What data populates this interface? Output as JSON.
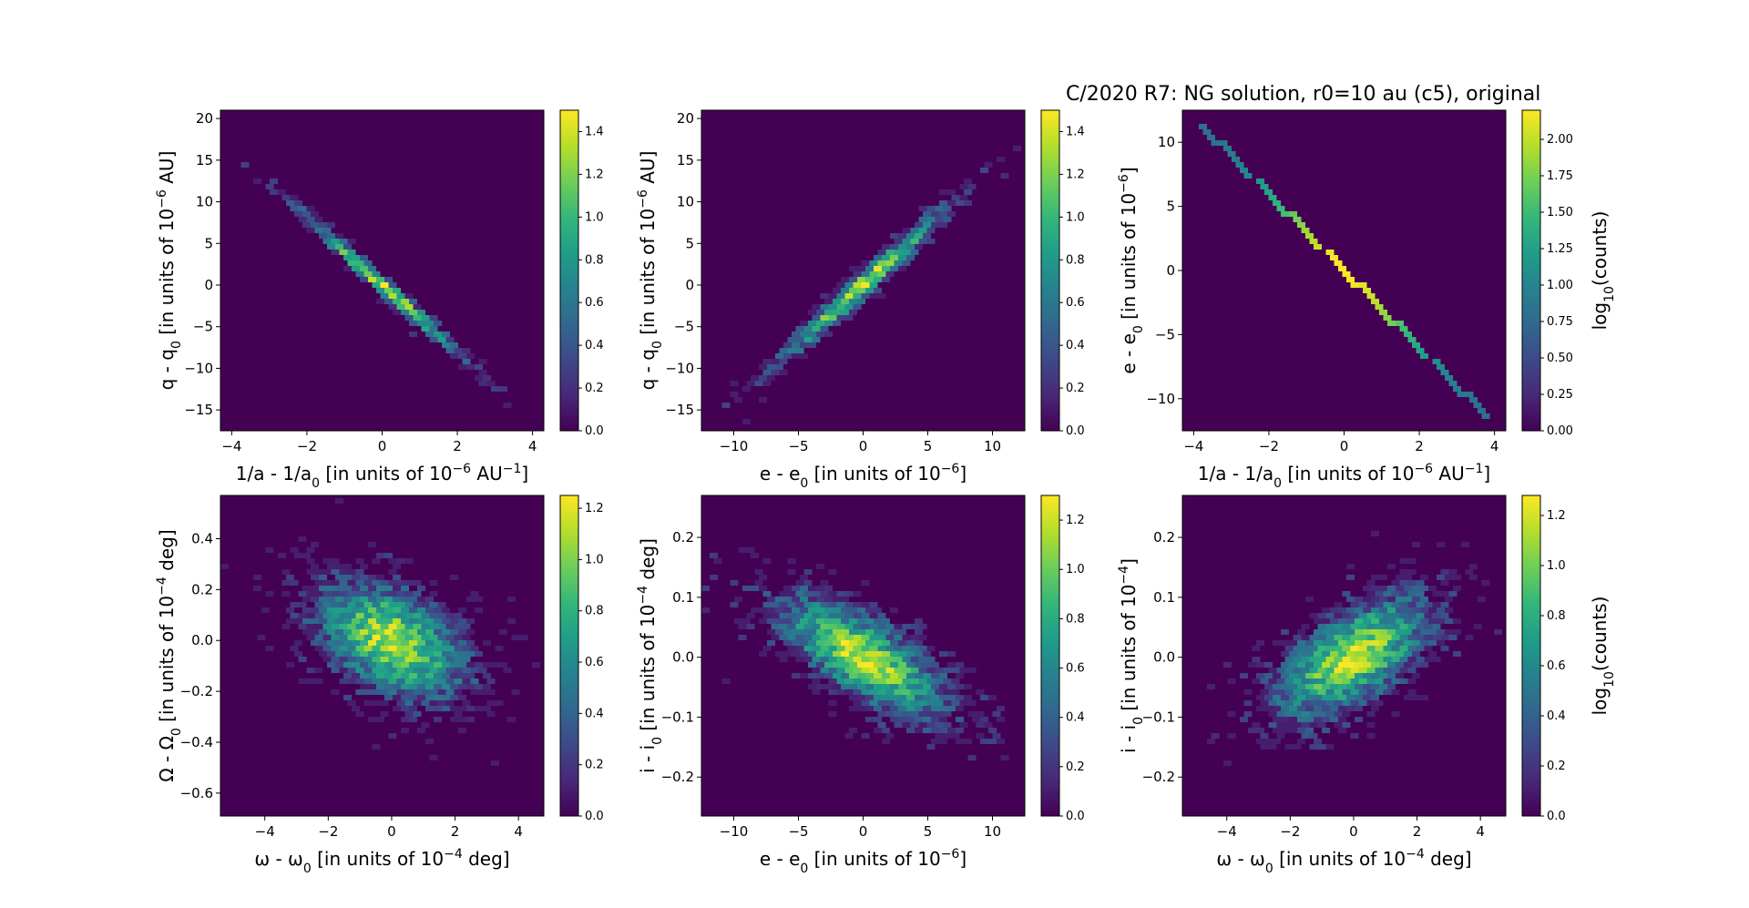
{
  "figure": {
    "title": "C/2020 R7: NG solution, r0=10 au (c5), original"
  },
  "colormap": {
    "name": "viridis",
    "stops": [
      "#440154",
      "#482878",
      "#3e4989",
      "#31688e",
      "#26828e",
      "#1f9e89",
      "#35b779",
      "#6ece58",
      "#b5de2b",
      "#fde725"
    ]
  },
  "chart_data": [
    {
      "type": "heatmap",
      "panel": "top-left",
      "x_label": {
        "main": "1/a - 1/a",
        "sub": "0",
        "mid": " [in units of 10",
        "sup": "−6",
        "post": " AU",
        "sup2": "−1",
        "end": "]"
      },
      "y_label": {
        "main": "q - q",
        "sub": "0",
        "mid": " [in units of 10",
        "sup": "−6",
        "post": " AU]"
      },
      "xlim": [
        -4.3,
        4.3
      ],
      "ylim": [
        -17.5,
        21
      ],
      "xticks": [
        "−4",
        "−2",
        "0",
        "2",
        "4"
      ],
      "xtick_values": [
        -4,
        -2,
        0,
        2,
        4
      ],
      "yticks": [
        "−15",
        "−10",
        "−5",
        "0",
        "5",
        "10",
        "15",
        "20"
      ],
      "ytick_values": [
        -15,
        -10,
        -5,
        0,
        5,
        10,
        15,
        20
      ],
      "slope": -4.0,
      "sx": 1.4,
      "sperp": 0.75,
      "scatter": "ellipse",
      "colorbar": {
        "range": [
          0,
          1.5
        ],
        "ticks": [
          "0.0",
          "0.2",
          "0.4",
          "0.6",
          "0.8",
          "1.0",
          "1.2",
          "1.4"
        ],
        "tick_values": [
          0,
          0.2,
          0.4,
          0.6,
          0.8,
          1.0,
          1.2,
          1.4
        ],
        "label": ""
      }
    },
    {
      "type": "heatmap",
      "panel": "top-center",
      "x_label": {
        "main": "e - e",
        "sub": "0",
        "mid": " [in units of 10",
        "sup": "−6",
        "post": "]"
      },
      "y_label": {
        "main": "q - q",
        "sub": "0",
        "mid": " [in units of 10",
        "sup": "−6",
        "post": " AU]"
      },
      "xlim": [
        -12.5,
        12.5
      ],
      "ylim": [
        -17.5,
        21
      ],
      "xticks": [
        "−10",
        "−5",
        "0",
        "5",
        "10"
      ],
      "xtick_values": [
        -10,
        -5,
        0,
        5,
        10
      ],
      "yticks": [
        "−15",
        "−10",
        "−5",
        "0",
        "5",
        "10",
        "15",
        "20"
      ],
      "ytick_values": [
        -15,
        -10,
        -5,
        0,
        5,
        10,
        15,
        20
      ],
      "slope": 1.4,
      "sx": 4.0,
      "sperp": 1.1,
      "scatter": "ellipse",
      "colorbar": {
        "range": [
          0,
          1.5
        ],
        "ticks": [
          "0.0",
          "0.2",
          "0.4",
          "0.6",
          "0.8",
          "1.0",
          "1.2",
          "1.4"
        ],
        "tick_values": [
          0,
          0.2,
          0.4,
          0.6,
          0.8,
          1.0,
          1.2,
          1.4
        ],
        "label": ""
      }
    },
    {
      "type": "heatmap",
      "panel": "top-right",
      "x_label": {
        "main": "1/a - 1/a",
        "sub": "0",
        "mid": " [in units of 10",
        "sup": "−6",
        "post": " AU",
        "sup2": "−1",
        "end": "]"
      },
      "y_label": {
        "main": "e - e",
        "sub": "0",
        "mid": " [in units of 10",
        "sup": "−6",
        "post": "]"
      },
      "xlim": [
        -4.3,
        4.3
      ],
      "ylim": [
        -12.5,
        12.5
      ],
      "xticks": [
        "−4",
        "−2",
        "0",
        "2",
        "4"
      ],
      "xtick_values": [
        -4,
        -2,
        0,
        2,
        4
      ],
      "yticks": [
        "−10",
        "−5",
        "0",
        "5",
        "10"
      ],
      "ytick_values": [
        -10,
        -5,
        0,
        5,
        10
      ],
      "slope": -3.0,
      "sx": 1.4,
      "sperp": 0.0,
      "scatter": "line",
      "colorbar": {
        "range": [
          0,
          2.2
        ],
        "ticks": [
          "0.00",
          "0.25",
          "0.50",
          "0.75",
          "1.00",
          "1.25",
          "1.50",
          "1.75",
          "2.00"
        ],
        "tick_values": [
          0,
          0.25,
          0.5,
          0.75,
          1.0,
          1.25,
          1.5,
          1.75,
          2.0
        ],
        "label": "log10(counts)"
      }
    },
    {
      "type": "heatmap",
      "panel": "bottom-left",
      "x_label": {
        "main": "ω - ω",
        "sub": "0",
        "mid": " [in units of 10",
        "sup": "−4",
        "post": " deg]"
      },
      "y_label": {
        "main": "Ω - Ω",
        "sub": "0",
        "mid": " [in units of 10",
        "sup": "−4",
        "post": " deg]"
      },
      "xlim": [
        -5.4,
        4.8
      ],
      "ylim": [
        -0.69,
        0.57
      ],
      "xticks": [
        "−4",
        "−2",
        "0",
        "2",
        "4"
      ],
      "xtick_values": [
        -4,
        -2,
        0,
        2,
        4
      ],
      "yticks": [
        "−0.6",
        "−0.4",
        "−0.2",
        "0.0",
        "0.2",
        "0.4"
      ],
      "ytick_values": [
        -0.6,
        -0.4,
        -0.2,
        0.0,
        0.2,
        0.4
      ],
      "slope": -0.04,
      "sx": 1.45,
      "sperp": 0.13,
      "scatter": "ellipse",
      "colorbar": {
        "range": [
          0,
          1.25
        ],
        "ticks": [
          "0.0",
          "0.2",
          "0.4",
          "0.6",
          "0.8",
          "1.0",
          "1.2"
        ],
        "tick_values": [
          0,
          0.2,
          0.4,
          0.6,
          0.8,
          1.0,
          1.2
        ],
        "label": ""
      }
    },
    {
      "type": "heatmap",
      "panel": "bottom-center",
      "x_label": {
        "main": "e - e",
        "sub": "0",
        "mid": " [in units of 10",
        "sup": "−6",
        "post": "]"
      },
      "y_label": {
        "main": "i - i",
        "sub": "0",
        "mid": " [in units of 10",
        "sup": "−4",
        "post": " deg]"
      },
      "xlim": [
        -12.5,
        12.5
      ],
      "ylim": [
        -0.265,
        0.27
      ],
      "xticks": [
        "−10",
        "−5",
        "0",
        "5",
        "10"
      ],
      "xtick_values": [
        -10,
        -5,
        0,
        5,
        10
      ],
      "yticks": [
        "−0.2",
        "−0.1",
        "0.0",
        "0.1",
        "0.2"
      ],
      "ytick_values": [
        -0.2,
        -0.1,
        0.0,
        0.1,
        0.2
      ],
      "slope": -0.011,
      "sx": 4.0,
      "sperp": 0.045,
      "scatter": "ellipse",
      "colorbar": {
        "range": [
          0,
          1.3
        ],
        "ticks": [
          "0.0",
          "0.2",
          "0.4",
          "0.6",
          "0.8",
          "1.0",
          "1.2"
        ],
        "tick_values": [
          0,
          0.2,
          0.4,
          0.6,
          0.8,
          1.0,
          1.2
        ],
        "label": ""
      }
    },
    {
      "type": "heatmap",
      "panel": "bottom-right",
      "x_label": {
        "main": "ω - ω",
        "sub": "0",
        "mid": " [in units of 10",
        "sup": "−4",
        "post": " deg]"
      },
      "y_label": {
        "main": "i - i",
        "sub": "0",
        "mid": " [in units of 10",
        "sup": "−4",
        "post": "]"
      },
      "xlim": [
        -5.4,
        4.8
      ],
      "ylim": [
        -0.265,
        0.27
      ],
      "xticks": [
        "−4",
        "−2",
        "0",
        "2",
        "4"
      ],
      "xtick_values": [
        -4,
        -2,
        0,
        2,
        4
      ],
      "yticks": [
        "−0.2",
        "−0.1",
        "0.0",
        "0.1",
        "0.2"
      ],
      "ytick_values": [
        -0.2,
        -0.1,
        0.0,
        0.1,
        0.2
      ],
      "slope": 0.025,
      "sx": 1.5,
      "sperp": 0.05,
      "scatter": "ellipse",
      "colorbar": {
        "range": [
          0,
          1.28
        ],
        "ticks": [
          "0.0",
          "0.2",
          "0.4",
          "0.6",
          "0.8",
          "1.0",
          "1.2"
        ],
        "tick_values": [
          0,
          0.2,
          0.4,
          0.6,
          0.8,
          1.0,
          1.2
        ],
        "label": "log10(counts)"
      }
    }
  ]
}
